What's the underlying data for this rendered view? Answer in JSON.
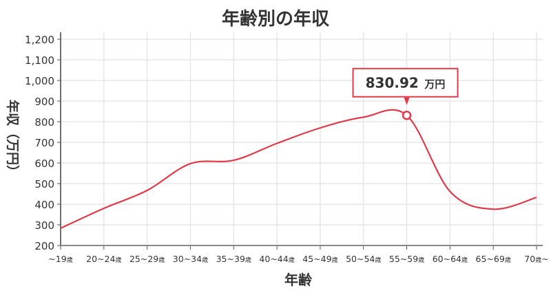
{
  "chart_data": {
    "type": "line",
    "title": "年齢別の年収",
    "xlabel": "年齢",
    "ylabel": "年収（万円）",
    "categories": [
      "~19歳",
      "20~24歳",
      "25~29歳",
      "30~34歳",
      "35~39歳",
      "40~44歳",
      "45~49歳",
      "50~54歳",
      "55~59歳",
      "60~64歳",
      "65~69歳",
      "70歳~"
    ],
    "series": [
      {
        "values": [
          284,
          380,
          467,
          597,
          613,
          695,
          770,
          822,
          830.92,
          462,
          376,
          433
        ],
        "color": "#e03a48"
      }
    ],
    "ylim": [
      200,
      1200
    ],
    "yticks": [
      "200",
      "300",
      "400",
      "500",
      "600",
      "700",
      "800",
      "900",
      "1,000",
      "1,100",
      "1,200"
    ],
    "grid": true,
    "tooltip": {
      "category": "55~59歳",
      "value": "830.92",
      "unit": "万円"
    }
  }
}
